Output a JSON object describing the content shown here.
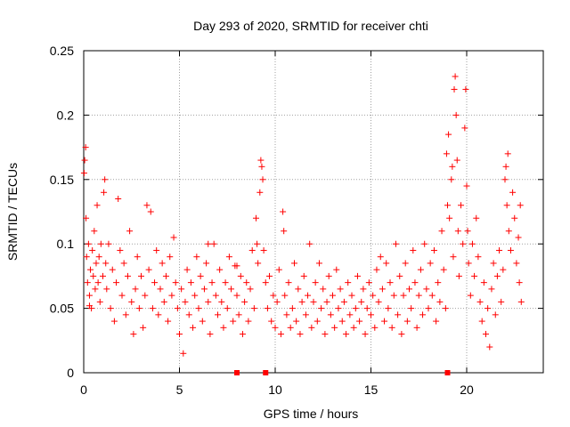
{
  "chart_data": {
    "type": "scatter",
    "title": "Day 293 of 2020, SRMTID for receiver chti",
    "xlabel": "GPS time / hours",
    "ylabel": "SRMTID / TECUs",
    "xlim": [
      0,
      24
    ],
    "ylim": [
      0,
      0.25
    ],
    "grid": true,
    "marker": "+",
    "color": "#ff0000",
    "x_ticks": [
      {
        "value": 0,
        "label": "0"
      },
      {
        "value": 5,
        "label": "5"
      },
      {
        "value": 10,
        "label": "10"
      },
      {
        "value": 15,
        "label": "15"
      },
      {
        "value": 20,
        "label": "20"
      }
    ],
    "y_ticks": [
      {
        "value": 0,
        "label": "0"
      },
      {
        "value": 0.05,
        "label": "0.05"
      },
      {
        "value": 0.1,
        "label": "0.1"
      },
      {
        "value": 0.15,
        "label": "0.15"
      },
      {
        "value": 0.2,
        "label": "0.2"
      },
      {
        "value": 0.25,
        "label": "0.25"
      }
    ],
    "series": [
      {
        "name": "SRMTID",
        "points": [
          [
            0.02,
            0.155
          ],
          [
            0.05,
            0.165
          ],
          [
            0.1,
            0.175
          ],
          [
            0.12,
            0.12
          ],
          [
            0.15,
            0.09
          ],
          [
            0.2,
            0.07
          ],
          [
            0.25,
            0.1
          ],
          [
            0.3,
            0.06
          ],
          [
            0.35,
            0.08
          ],
          [
            0.4,
            0.05
          ],
          [
            0.45,
            0.095
          ],
          [
            0.5,
            0.075
          ],
          [
            0.55,
            0.11
          ],
          [
            0.6,
            0.065
          ],
          [
            0.65,
            0.085
          ],
          [
            0.7,
            0.13
          ],
          [
            0.75,
            0.07
          ],
          [
            0.8,
            0.09
          ],
          [
            0.85,
            0.055
          ],
          [
            0.9,
            0.1
          ],
          [
            1.0,
            0.075
          ],
          [
            1.05,
            0.14
          ],
          [
            1.1,
            0.15
          ],
          [
            1.15,
            0.085
          ],
          [
            1.2,
            0.065
          ],
          [
            1.3,
            0.1
          ],
          [
            1.4,
            0.05
          ],
          [
            1.5,
            0.08
          ],
          [
            1.6,
            0.04
          ],
          [
            1.7,
            0.07
          ],
          [
            1.8,
            0.135
          ],
          [
            1.9,
            0.095
          ],
          [
            2.0,
            0.06
          ],
          [
            2.1,
            0.085
          ],
          [
            2.2,
            0.045
          ],
          [
            2.3,
            0.075
          ],
          [
            2.4,
            0.11
          ],
          [
            2.5,
            0.055
          ],
          [
            2.6,
            0.03
          ],
          [
            2.7,
            0.065
          ],
          [
            2.8,
            0.09
          ],
          [
            2.9,
            0.05
          ],
          [
            3.0,
            0.075
          ],
          [
            3.1,
            0.035
          ],
          [
            3.2,
            0.06
          ],
          [
            3.3,
            0.13
          ],
          [
            3.4,
            0.08
          ],
          [
            3.5,
            0.125
          ],
          [
            3.6,
            0.05
          ],
          [
            3.7,
            0.07
          ],
          [
            3.8,
            0.095
          ],
          [
            3.9,
            0.045
          ],
          [
            4.0,
            0.065
          ],
          [
            4.1,
            0.085
          ],
          [
            4.2,
            0.055
          ],
          [
            4.3,
            0.075
          ],
          [
            4.4,
            0.04
          ],
          [
            4.5,
            0.09
          ],
          [
            4.6,
            0.06
          ],
          [
            4.7,
            0.105
          ],
          [
            4.8,
            0.07
          ],
          [
            4.9,
            0.05
          ],
          [
            5.0,
            0.03
          ],
          [
            5.1,
            0.065
          ],
          [
            5.2,
            0.015
          ],
          [
            5.3,
            0.055
          ],
          [
            5.4,
            0.08
          ],
          [
            5.5,
            0.045
          ],
          [
            5.6,
            0.07
          ],
          [
            5.7,
            0.035
          ],
          [
            5.8,
            0.06
          ],
          [
            5.9,
            0.09
          ],
          [
            6.0,
            0.05
          ],
          [
            6.1,
            0.075
          ],
          [
            6.2,
            0.04
          ],
          [
            6.3,
            0.065
          ],
          [
            6.4,
            0.085
          ],
          [
            6.5,
            0.055
          ],
          [
            6.6,
            0.03
          ],
          [
            6.7,
            0.07
          ],
          [
            6.8,
            0.1
          ],
          [
            6.9,
            0.06
          ],
          [
            7.0,
            0.045
          ],
          [
            7.1,
            0.08
          ],
          [
            7.2,
            0.055
          ],
          [
            7.3,
            0.035
          ],
          [
            7.4,
            0.07
          ],
          [
            7.5,
            0.05
          ],
          [
            7.6,
            0.09
          ],
          [
            7.7,
            0.065
          ],
          [
            7.8,
            0.04
          ],
          [
            7.9,
            0.083
          ],
          [
            8.0,
            0.06
          ],
          [
            8.1,
            0.045
          ],
          [
            8.2,
            0.075
          ],
          [
            8.3,
            0.03
          ],
          [
            8.4,
            0.055
          ],
          [
            8.5,
            0.07
          ],
          [
            8.6,
            0.04
          ],
          [
            8.7,
            0.065
          ],
          [
            8.8,
            0.095
          ],
          [
            8.9,
            0.05
          ],
          [
            9.0,
            0.12
          ],
          [
            9.05,
            0.1
          ],
          [
            9.1,
            0.085
          ],
          [
            9.2,
            0.14
          ],
          [
            9.25,
            0.165
          ],
          [
            9.3,
            0.16
          ],
          [
            9.35,
            0.15
          ],
          [
            9.4,
            0.095
          ],
          [
            9.5,
            0.07
          ],
          [
            9.6,
            0.05
          ],
          [
            9.7,
            0.075
          ],
          [
            9.8,
            0.04
          ],
          [
            9.9,
            0.06
          ],
          [
            10.0,
            0.035
          ],
          [
            10.1,
            0.055
          ],
          [
            10.2,
            0.08
          ],
          [
            10.3,
            0.03
          ],
          [
            10.4,
            0.125
          ],
          [
            10.45,
            0.11
          ],
          [
            10.5,
            0.06
          ],
          [
            10.6,
            0.045
          ],
          [
            10.7,
            0.07
          ],
          [
            10.8,
            0.035
          ],
          [
            10.9,
            0.05
          ],
          [
            11.0,
            0.085
          ],
          [
            11.1,
            0.04
          ],
          [
            11.2,
            0.065
          ],
          [
            11.3,
            0.03
          ],
          [
            11.4,
            0.055
          ],
          [
            11.5,
            0.075
          ],
          [
            11.6,
            0.045
          ],
          [
            11.7,
            0.06
          ],
          [
            11.8,
            0.1
          ],
          [
            11.9,
            0.035
          ],
          [
            12.0,
            0.055
          ],
          [
            12.1,
            0.07
          ],
          [
            12.2,
            0.04
          ],
          [
            12.3,
            0.085
          ],
          [
            12.4,
            0.05
          ],
          [
            12.5,
            0.065
          ],
          [
            12.6,
            0.03
          ],
          [
            12.7,
            0.055
          ],
          [
            12.8,
            0.075
          ],
          [
            12.9,
            0.045
          ],
          [
            13.0,
            0.06
          ],
          [
            13.1,
            0.035
          ],
          [
            13.2,
            0.08
          ],
          [
            13.3,
            0.05
          ],
          [
            13.4,
            0.065
          ],
          [
            13.5,
            0.04
          ],
          [
            13.6,
            0.055
          ],
          [
            13.7,
            0.03
          ],
          [
            13.8,
            0.07
          ],
          [
            13.9,
            0.045
          ],
          [
            14.0,
            0.06
          ],
          [
            14.1,
            0.035
          ],
          [
            14.2,
            0.05
          ],
          [
            14.3,
            0.075
          ],
          [
            14.4,
            0.04
          ],
          [
            14.5,
            0.055
          ],
          [
            14.6,
            0.065
          ],
          [
            14.7,
            0.03
          ],
          [
            14.8,
            0.05
          ],
          [
            14.9,
            0.07
          ],
          [
            15.0,
            0.045
          ],
          [
            15.1,
            0.06
          ],
          [
            15.2,
            0.035
          ],
          [
            15.3,
            0.08
          ],
          [
            15.4,
            0.055
          ],
          [
            15.5,
            0.09
          ],
          [
            15.6,
            0.065
          ],
          [
            15.7,
            0.04
          ],
          [
            15.8,
            0.085
          ],
          [
            15.9,
            0.05
          ],
          [
            16.0,
            0.07
          ],
          [
            16.1,
            0.035
          ],
          [
            16.2,
            0.06
          ],
          [
            16.3,
            0.1
          ],
          [
            16.4,
            0.045
          ],
          [
            16.5,
            0.075
          ],
          [
            16.6,
            0.03
          ],
          [
            16.7,
            0.06
          ],
          [
            16.8,
            0.085
          ],
          [
            16.9,
            0.04
          ],
          [
            17.0,
            0.065
          ],
          [
            17.1,
            0.05
          ],
          [
            17.2,
            0.095
          ],
          [
            17.3,
            0.07
          ],
          [
            17.4,
            0.035
          ],
          [
            17.5,
            0.06
          ],
          [
            17.6,
            0.08
          ],
          [
            17.7,
            0.045
          ],
          [
            17.8,
            0.1
          ],
          [
            17.9,
            0.065
          ],
          [
            18.0,
            0.05
          ],
          [
            18.1,
            0.085
          ],
          [
            18.2,
            0.06
          ],
          [
            18.3,
            0.095
          ],
          [
            18.4,
            0.04
          ],
          [
            18.5,
            0.07
          ],
          [
            18.6,
            0.055
          ],
          [
            18.7,
            0.11
          ],
          [
            18.8,
            0.08
          ],
          [
            18.9,
            0.05
          ],
          [
            18.95,
            0.17
          ],
          [
            19.0,
            0.13
          ],
          [
            19.05,
            0.185
          ],
          [
            19.1,
            0.12
          ],
          [
            19.2,
            0.15
          ],
          [
            19.25,
            0.16
          ],
          [
            19.3,
            0.09
          ],
          [
            19.35,
            0.22
          ],
          [
            19.4,
            0.23
          ],
          [
            19.45,
            0.2
          ],
          [
            19.5,
            0.165
          ],
          [
            19.55,
            0.11
          ],
          [
            19.6,
            0.075
          ],
          [
            19.7,
            0.13
          ],
          [
            19.8,
            0.1
          ],
          [
            19.9,
            0.19
          ],
          [
            19.95,
            0.22
          ],
          [
            20.0,
            0.145
          ],
          [
            20.05,
            0.11
          ],
          [
            20.1,
            0.085
          ],
          [
            20.2,
            0.06
          ],
          [
            20.3,
            0.1
          ],
          [
            20.4,
            0.075
          ],
          [
            20.5,
            0.12
          ],
          [
            20.6,
            0.09
          ],
          [
            20.7,
            0.055
          ],
          [
            20.8,
            0.04
          ],
          [
            20.9,
            0.07
          ],
          [
            21.0,
            0.03
          ],
          [
            21.1,
            0.05
          ],
          [
            21.2,
            0.02
          ],
          [
            21.3,
            0.065
          ],
          [
            21.4,
            0.085
          ],
          [
            21.5,
            0.045
          ],
          [
            21.6,
            0.075
          ],
          [
            21.7,
            0.095
          ],
          [
            21.8,
            0.055
          ],
          [
            21.9,
            0.08
          ],
          [
            22.0,
            0.15
          ],
          [
            22.05,
            0.16
          ],
          [
            22.1,
            0.13
          ],
          [
            22.15,
            0.17
          ],
          [
            22.2,
            0.11
          ],
          [
            22.3,
            0.095
          ],
          [
            22.4,
            0.14
          ],
          [
            22.5,
            0.12
          ],
          [
            22.6,
            0.085
          ],
          [
            22.7,
            0.105
          ],
          [
            22.75,
            0.07
          ],
          [
            22.8,
            0.13
          ],
          [
            22.85,
            0.055
          ],
          [
            0.3,
            0.052
          ],
          [
            6.5,
            0.1
          ],
          [
            8.0,
            0.083
          ]
        ]
      }
    ],
    "baseline_markers_x": [
      8.0,
      9.5,
      19.0
    ]
  }
}
